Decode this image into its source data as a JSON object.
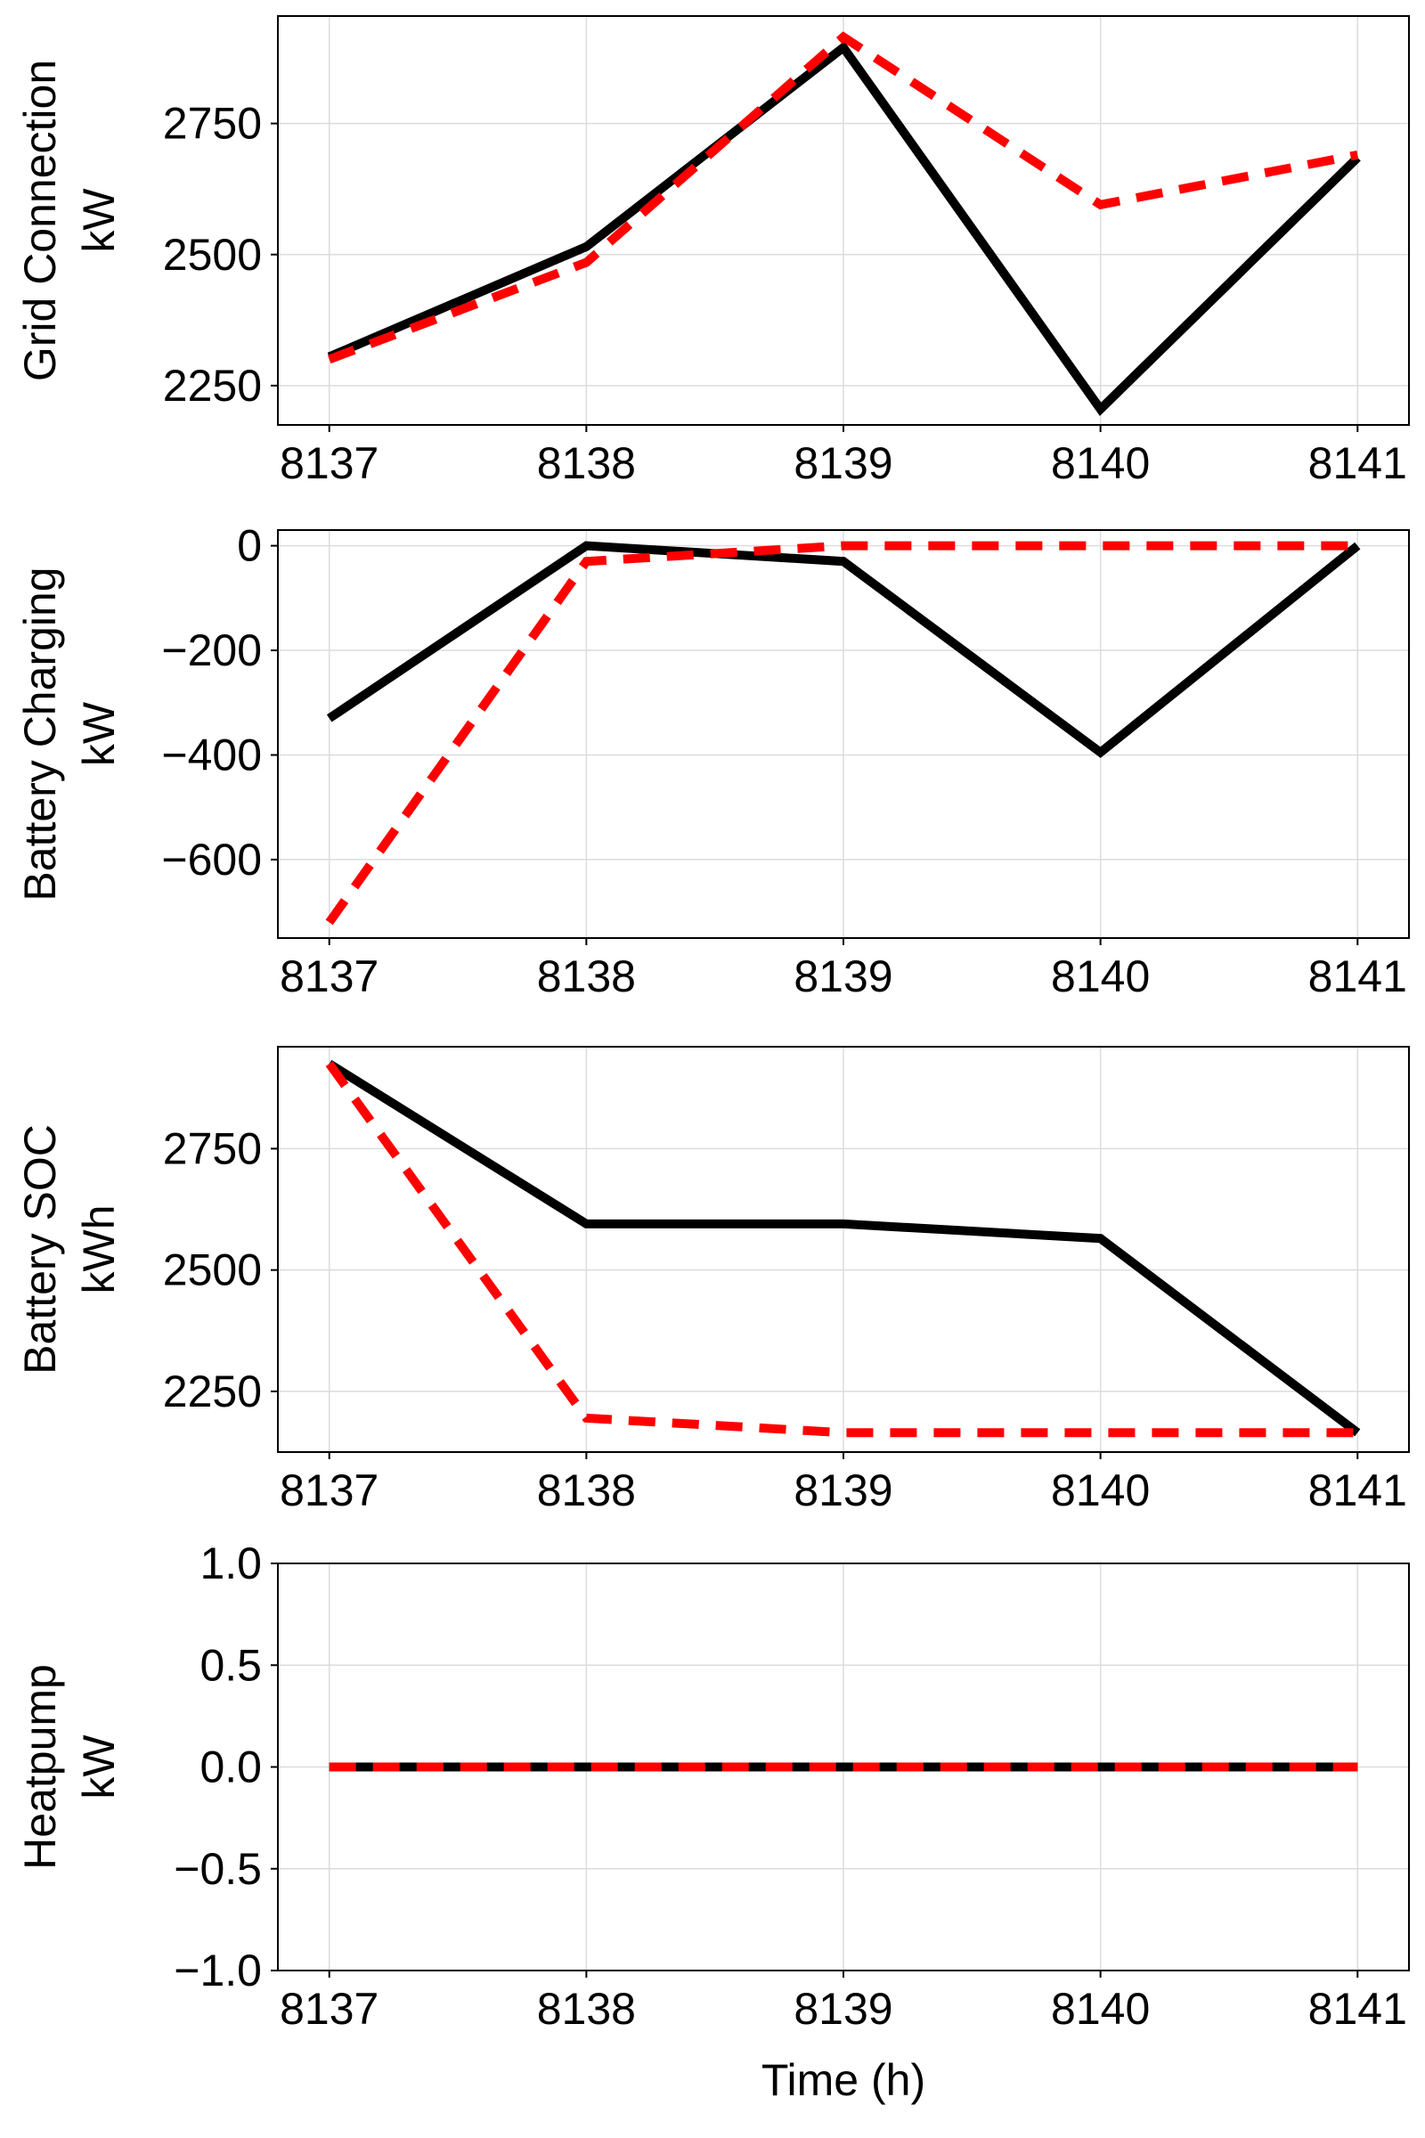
{
  "chart_data": [
    {
      "type": "line",
      "ylabel_line1": "Grid Connection",
      "ylabel_line2": "kW",
      "x": [
        8137,
        8138,
        8139,
        8140,
        8141
      ],
      "xticks": [
        "8137",
        "8138",
        "8139",
        "8140",
        "8141"
      ],
      "xlim": [
        8136.8,
        8141.2
      ],
      "ylim": [
        2175,
        2955
      ],
      "yticks": [
        2250,
        2500,
        2750
      ],
      "ytick_labels": [
        "2250",
        "2500",
        "2750"
      ],
      "grid": true,
      "series": [
        {
          "style": "solid",
          "color": "#000000",
          "values": [
            2305,
            2515,
            2895,
            2205,
            2685
          ]
        },
        {
          "style": "dashed",
          "color": "#ff0000",
          "values": [
            2300,
            2485,
            2915,
            2595,
            2690
          ]
        }
      ]
    },
    {
      "type": "line",
      "ylabel_line1": "Battery Charging",
      "ylabel_line2": "kW",
      "x": [
        8137,
        8138,
        8139,
        8140,
        8141
      ],
      "xticks": [
        "8137",
        "8138",
        "8139",
        "8140",
        "8141"
      ],
      "xlim": [
        8136.8,
        8141.2
      ],
      "ylim": [
        -750,
        30
      ],
      "yticks": [
        -600,
        -400,
        -200,
        0
      ],
      "ytick_labels": [
        "−600",
        "−400",
        "−200",
        "0"
      ],
      "grid": true,
      "series": [
        {
          "style": "solid",
          "color": "#000000",
          "values": [
            -330,
            0,
            -30,
            -395,
            0
          ]
        },
        {
          "style": "dashed",
          "color": "#ff0000",
          "values": [
            -720,
            -30,
            0,
            0,
            0
          ]
        }
      ]
    },
    {
      "type": "line",
      "ylabel_line1": "Battery SOC",
      "ylabel_line2": "kWh",
      "x": [
        8137,
        8138,
        8139,
        8140,
        8141
      ],
      "xticks": [
        "8137",
        "8138",
        "8139",
        "8140",
        "8141"
      ],
      "xlim": [
        8136.8,
        8141.2
      ],
      "ylim": [
        2125,
        2960
      ],
      "yticks": [
        2250,
        2500,
        2750
      ],
      "ytick_labels": [
        "2250",
        "2500",
        "2750"
      ],
      "grid": true,
      "series": [
        {
          "style": "solid",
          "color": "#000000",
          "values": [
            2925,
            2595,
            2595,
            2565,
            2165
          ]
        },
        {
          "style": "dashed",
          "color": "#ff0000",
          "values": [
            2925,
            2195,
            2165,
            2165,
            2165
          ]
        }
      ]
    },
    {
      "type": "line",
      "ylabel_line1": "Heatpump",
      "ylabel_line2": "kW",
      "xlabel": "Time (h)",
      "x": [
        8137,
        8138,
        8139,
        8140,
        8141
      ],
      "xticks": [
        "8137",
        "8138",
        "8139",
        "8140",
        "8141"
      ],
      "xlim": [
        8136.8,
        8141.2
      ],
      "ylim": [
        -1.0,
        1.0
      ],
      "yticks": [
        -1.0,
        -0.5,
        0.0,
        0.5,
        1.0
      ],
      "ytick_labels": [
        "−1.0",
        "−0.5",
        "0.0",
        "0.5",
        "1.0"
      ],
      "grid": true,
      "series": [
        {
          "style": "solid",
          "color": "#000000",
          "values": [
            0,
            0,
            0,
            0,
            0
          ]
        },
        {
          "style": "dashed",
          "color": "#ff0000",
          "values": [
            0,
            0,
            0,
            0,
            0
          ]
        }
      ]
    }
  ]
}
